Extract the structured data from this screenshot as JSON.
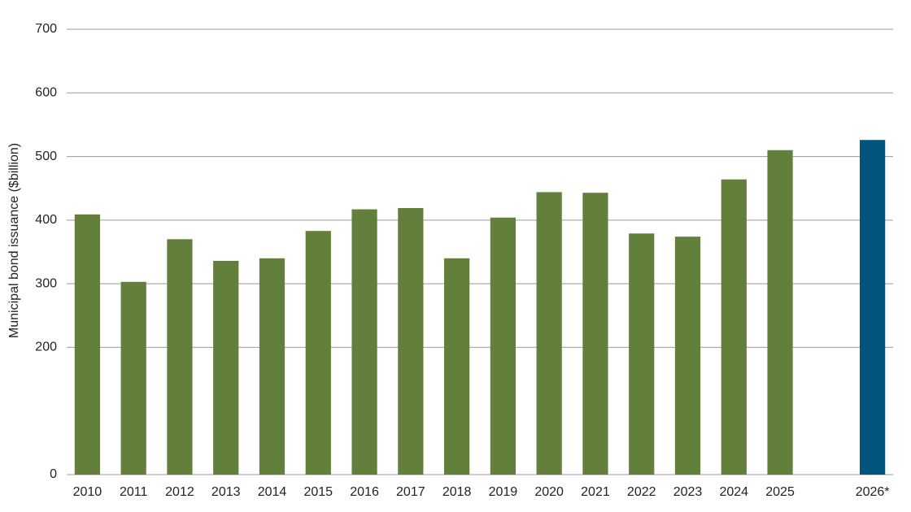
{
  "chart_data": {
    "type": "bar",
    "y_label": "Municipal bond issuance ($billion)",
    "categories": [
      "2010",
      "2011",
      "2012",
      "2013",
      "2014",
      "2015",
      "2016",
      "2017",
      "2018",
      "2019",
      "2020",
      "2021",
      "2022",
      "2023",
      "2024",
      "2025",
      null,
      "2026*"
    ],
    "values": [
      409,
      303,
      370,
      336,
      340,
      383,
      417,
      419,
      340,
      404,
      444,
      443,
      379,
      374,
      464,
      510,
      null,
      526
    ],
    "colors": [
      "#62803c",
      "#62803c",
      "#62803c",
      "#62803c",
      "#62803c",
      "#62803c",
      "#62803c",
      "#62803c",
      "#62803c",
      "#62803c",
      "#62803c",
      "#62803c",
      "#62803c",
      "#62803c",
      "#62803c",
      "#62803c",
      null,
      "#00557f"
    ],
    "ylim": [
      0,
      700
    ],
    "yticks": [
      0,
      200,
      300,
      400,
      500,
      600,
      700
    ],
    "grid": true
  }
}
